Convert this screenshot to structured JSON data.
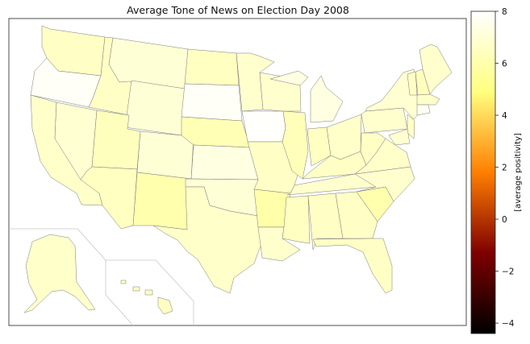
{
  "chart_data": {
    "type": "heatmap",
    "title": "Average Tone of News on Election Day 2008",
    "colorbar": {
      "label": "[average positivity]",
      "range": [
        -4.4,
        8
      ],
      "ticks": [
        8,
        6,
        4,
        2,
        0,
        -2,
        -4
      ],
      "tick_labels": [
        "8",
        "6",
        "4",
        "2",
        "0",
        "−2",
        "−4"
      ],
      "colormap": "afmhot"
    },
    "values": {
      "Washington": 6.6,
      "Oregon": 7.8,
      "California": 6.7,
      "Nevada": 6.9,
      "Idaho": 6.6,
      "Montana": 7.0,
      "Wyoming": 7.0,
      "Utah": 6.4,
      "Arizona": 6.5,
      "Colorado": 7.0,
      "New Mexico": 6.0,
      "North Dakota": 6.5,
      "South Dakota": 7.8,
      "Nebraska": 6.2,
      "Kansas": 7.3,
      "Oklahoma": 7.0,
      "Texas": 6.7,
      "Minnesota": 6.8,
      "Iowa": 7.9,
      "Missouri": 6.6,
      "Arkansas": 5.9,
      "Louisiana": 6.8,
      "Wisconsin": 6.8,
      "Illinois": 6.3,
      "Michigan": 7.3,
      "Indiana": 6.5,
      "Ohio": 6.7,
      "Kentucky": 6.6,
      "Tennessee": 6.8,
      "Mississippi": 6.5,
      "Alabama": 6.6,
      "Georgia": 6.6,
      "Florida": 6.6,
      "South Carolina": 6.0,
      "North Carolina": 6.8,
      "Virginia": 6.7,
      "West Virginia": 6.6,
      "Pennsylvania": 6.8,
      "New York": 6.9,
      "Vermont": 6.6,
      "New Hampshire": 6.4,
      "Maine": 6.8,
      "Massachusetts": 6.7,
      "Connecticut": 7.7,
      "New Jersey": 6.6,
      "Maryland": 6.9,
      "Alaska": 6.7,
      "Hawaii": 6.5
    }
  }
}
